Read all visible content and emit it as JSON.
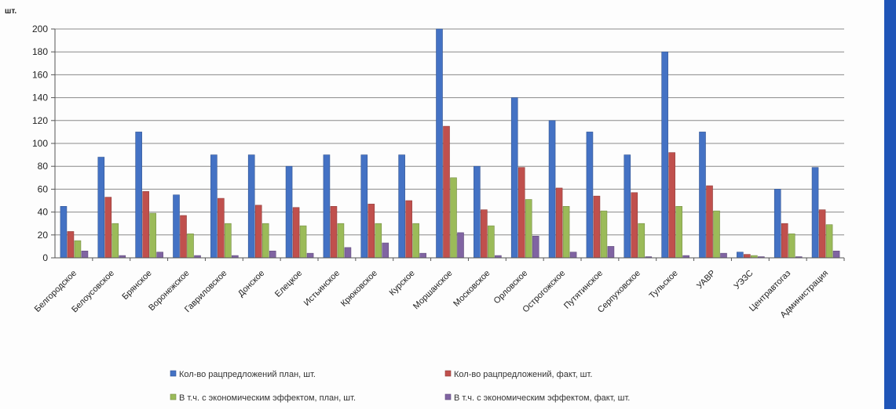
{
  "chart_data": {
    "type": "bar",
    "ylabel": "шт.",
    "ylim": [
      0,
      200
    ],
    "yticks": [
      0,
      20,
      40,
      60,
      80,
      100,
      120,
      140,
      160,
      180,
      200
    ],
    "grid": true,
    "legend_position": "bottom",
    "categories": [
      "Белгородское",
      "Белоусовское",
      "Брянское",
      "Воронежское",
      "Гавриловское",
      "Донское",
      "Елецкое",
      "Истьинское",
      "Крюковское",
      "Курское",
      "Моршанское",
      "Московское",
      "Орловское",
      "Острогожское",
      "Путятинское",
      "Серпуховское",
      "Тульское",
      "УАВР",
      "УЭЗС",
      "Центравтогаз",
      "Администрация"
    ],
    "series": [
      {
        "name": "Кол-во рацпредложений план, шт.",
        "color": "#4472c4",
        "values": [
          45,
          88,
          110,
          55,
          90,
          90,
          80,
          90,
          90,
          90,
          200,
          80,
          140,
          120,
          110,
          90,
          180,
          110,
          5,
          60,
          79
        ]
      },
      {
        "name": "Кол-во рацпредложений, факт, шт.",
        "color": "#c0504d",
        "values": [
          23,
          53,
          58,
          37,
          52,
          46,
          44,
          45,
          47,
          50,
          115,
          42,
          79,
          61,
          54,
          57,
          92,
          63,
          3,
          30,
          42
        ]
      },
      {
        "name": "В т.ч. с экономическим эффектом, план, шт.",
        "color": "#9bbb59",
        "values": [
          15,
          30,
          39,
          21,
          30,
          30,
          28,
          30,
          30,
          30,
          70,
          28,
          51,
          45,
          41,
          30,
          45,
          41,
          2,
          21,
          29
        ]
      },
      {
        "name": "В т.ч. с экономическим эффектом, факт, шт.",
        "color": "#8064a2",
        "values": [
          6,
          2,
          5,
          2,
          2,
          6,
          4,
          9,
          13,
          4,
          22,
          2,
          19,
          5,
          10,
          1,
          2,
          4,
          1,
          1,
          6
        ]
      }
    ]
  }
}
